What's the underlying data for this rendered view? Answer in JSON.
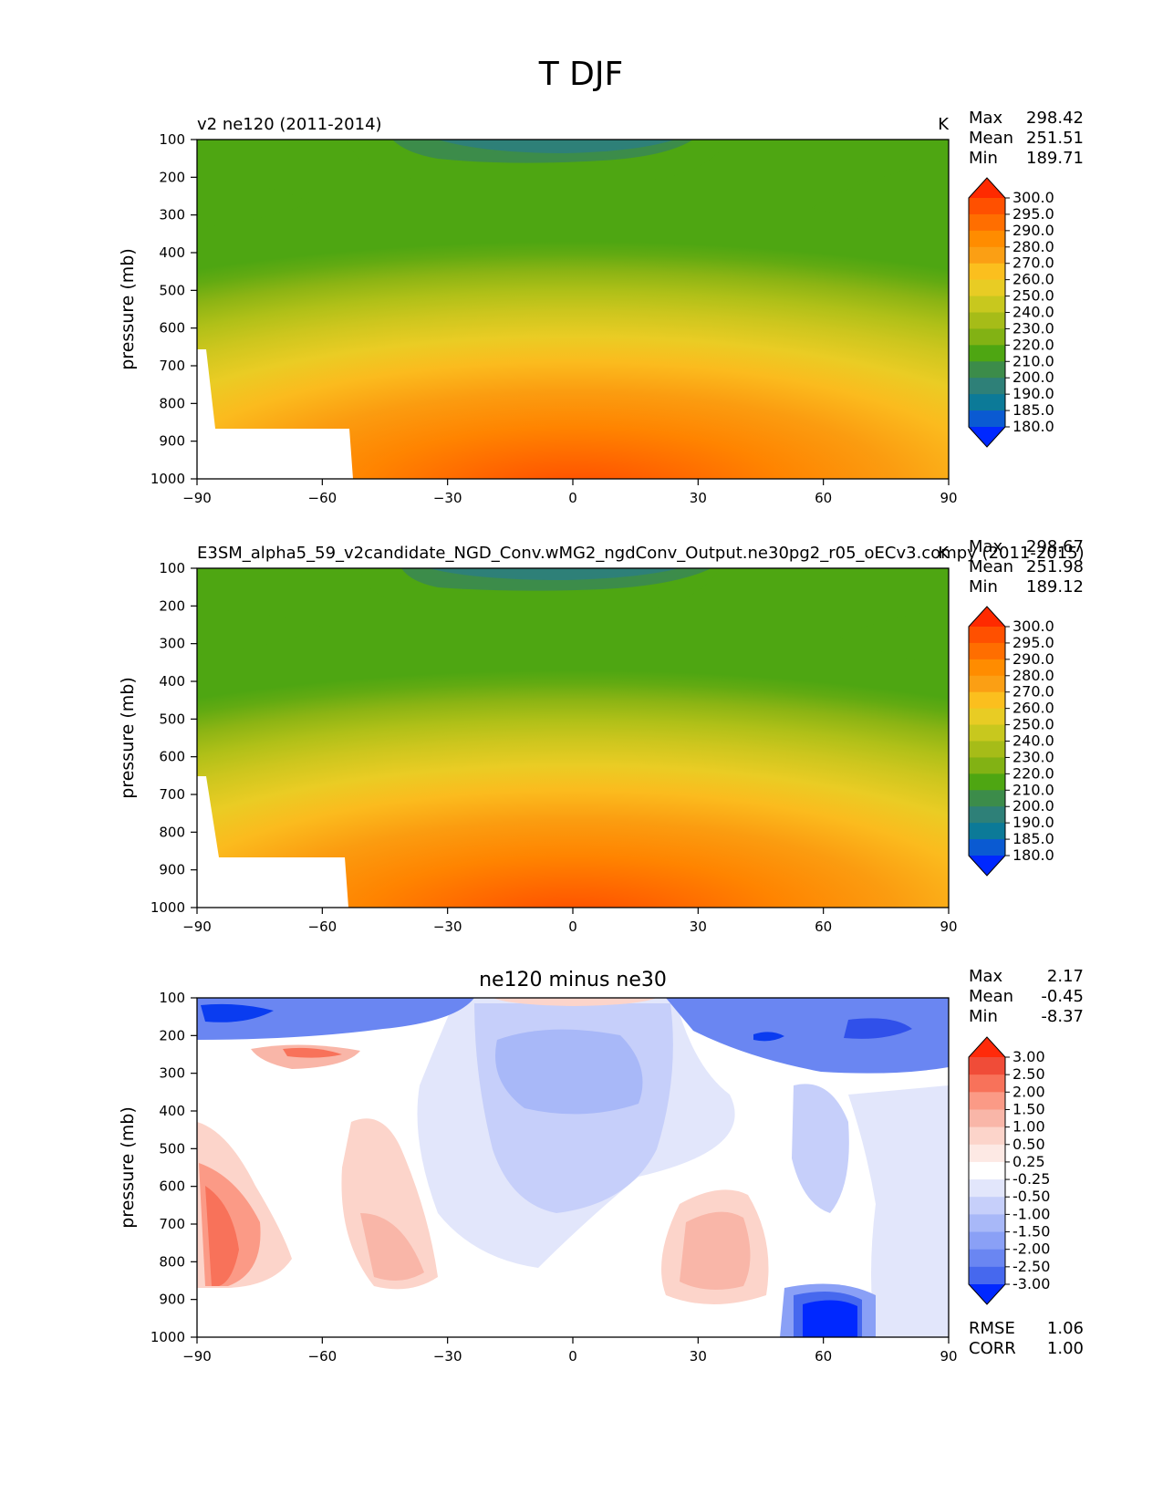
{
  "figure_title": "T DJF",
  "chart_data": [
    {
      "type": "heatmap",
      "title_left": "v2 ne120 (2011-2014)",
      "title_right": "K",
      "xlabel": "",
      "ylabel": "pressure (mb)",
      "x_ticks": [
        "−90",
        "−60",
        "−30",
        "0",
        "30",
        "60",
        "90"
      ],
      "y_ticks": [
        "100",
        "200",
        "300",
        "400",
        "500",
        "600",
        "700",
        "800",
        "900",
        "1000"
      ],
      "xlim": [
        -90,
        90
      ],
      "ylim": [
        1000,
        100
      ],
      "stats": {
        "labels": [
          "Max",
          "Mean",
          "Min"
        ],
        "values": [
          "298.42",
          "251.51",
          "189.71"
        ]
      },
      "colorbar": {
        "labels": [
          "300.0",
          "295.0",
          "290.0",
          "280.0",
          "270.0",
          "260.0",
          "250.0",
          "240.0",
          "230.0",
          "220.0",
          "210.0",
          "200.0",
          "190.0",
          "185.0",
          "180.0"
        ],
        "colors": [
          "#ff2a00",
          "#ff5000",
          "#ff6e00",
          "#ff8c00",
          "#fb9f14",
          "#fbbf1e",
          "#e8cc24",
          "#c8c81e",
          "#a6bc18",
          "#82b214",
          "#4ea612",
          "#3c8c4a",
          "#2e8078",
          "#0c7a98",
          "#0a5ad2",
          "#0028ff"
        ]
      }
    },
    {
      "type": "heatmap",
      "title_left": "E3SM_alpha5_59_v2candidate_NGD_Conv.wMG2_ngdConv_Output.ne30pg2_r05_oECv3.compy (2011-2015)",
      "title_right": "K",
      "xlabel": "",
      "ylabel": "pressure (mb)",
      "x_ticks": [
        "−90",
        "−60",
        "−30",
        "0",
        "30",
        "60",
        "90"
      ],
      "y_ticks": [
        "100",
        "200",
        "300",
        "400",
        "500",
        "600",
        "700",
        "800",
        "900",
        "1000"
      ],
      "xlim": [
        -90,
        90
      ],
      "ylim": [
        1000,
        100
      ],
      "stats": {
        "labels": [
          "Max",
          "Mean",
          "Min"
        ],
        "values": [
          "298.67",
          "251.98",
          "189.12"
        ]
      },
      "colorbar": {
        "labels": [
          "300.0",
          "295.0",
          "290.0",
          "280.0",
          "270.0",
          "260.0",
          "250.0",
          "240.0",
          "230.0",
          "220.0",
          "210.0",
          "200.0",
          "190.0",
          "185.0",
          "180.0"
        ],
        "colors": [
          "#ff2a00",
          "#ff5000",
          "#ff6e00",
          "#ff8c00",
          "#fb9f14",
          "#fbbf1e",
          "#e8cc24",
          "#c8c81e",
          "#a6bc18",
          "#82b214",
          "#4ea612",
          "#3c8c4a",
          "#2e8078",
          "#0c7a98",
          "#0a5ad2",
          "#0028ff"
        ]
      }
    },
    {
      "type": "heatmap",
      "title": "ne120 minus ne30",
      "xlabel": "",
      "ylabel": "pressure (mb)",
      "x_ticks": [
        "−90",
        "−60",
        "−30",
        "0",
        "30",
        "60",
        "90"
      ],
      "y_ticks": [
        "100",
        "200",
        "300",
        "400",
        "500",
        "600",
        "700",
        "800",
        "900",
        "1000"
      ],
      "xlim": [
        -90,
        90
      ],
      "ylim": [
        1000,
        100
      ],
      "stats": {
        "labels": [
          "Max",
          "Mean",
          "Min"
        ],
        "values": [
          "2.17",
          "-0.45",
          "-8.37"
        ]
      },
      "colorbar": {
        "labels": [
          "3.00",
          "2.50",
          "2.00",
          "1.50",
          "1.00",
          "0.50",
          "0.25",
          "-0.25",
          "-0.50",
          "-1.00",
          "-1.50",
          "-2.00",
          "-2.50",
          "-3.00"
        ],
        "colors": [
          "#ff2a0a",
          "#f04c38",
          "#f8725a",
          "#fb9a86",
          "#f9b6a8",
          "#fcd4ca",
          "#fde9e4",
          "#ffffff",
          "#e2e6fb",
          "#c6cffa",
          "#a8b8f8",
          "#8aa0f6",
          "#6a86f2",
          "#4668ee",
          "#0028ff"
        ]
      },
      "footer_stats": {
        "labels": [
          "RMSE",
          "CORR"
        ],
        "values": [
          "1.06",
          "1.00"
        ]
      }
    }
  ]
}
